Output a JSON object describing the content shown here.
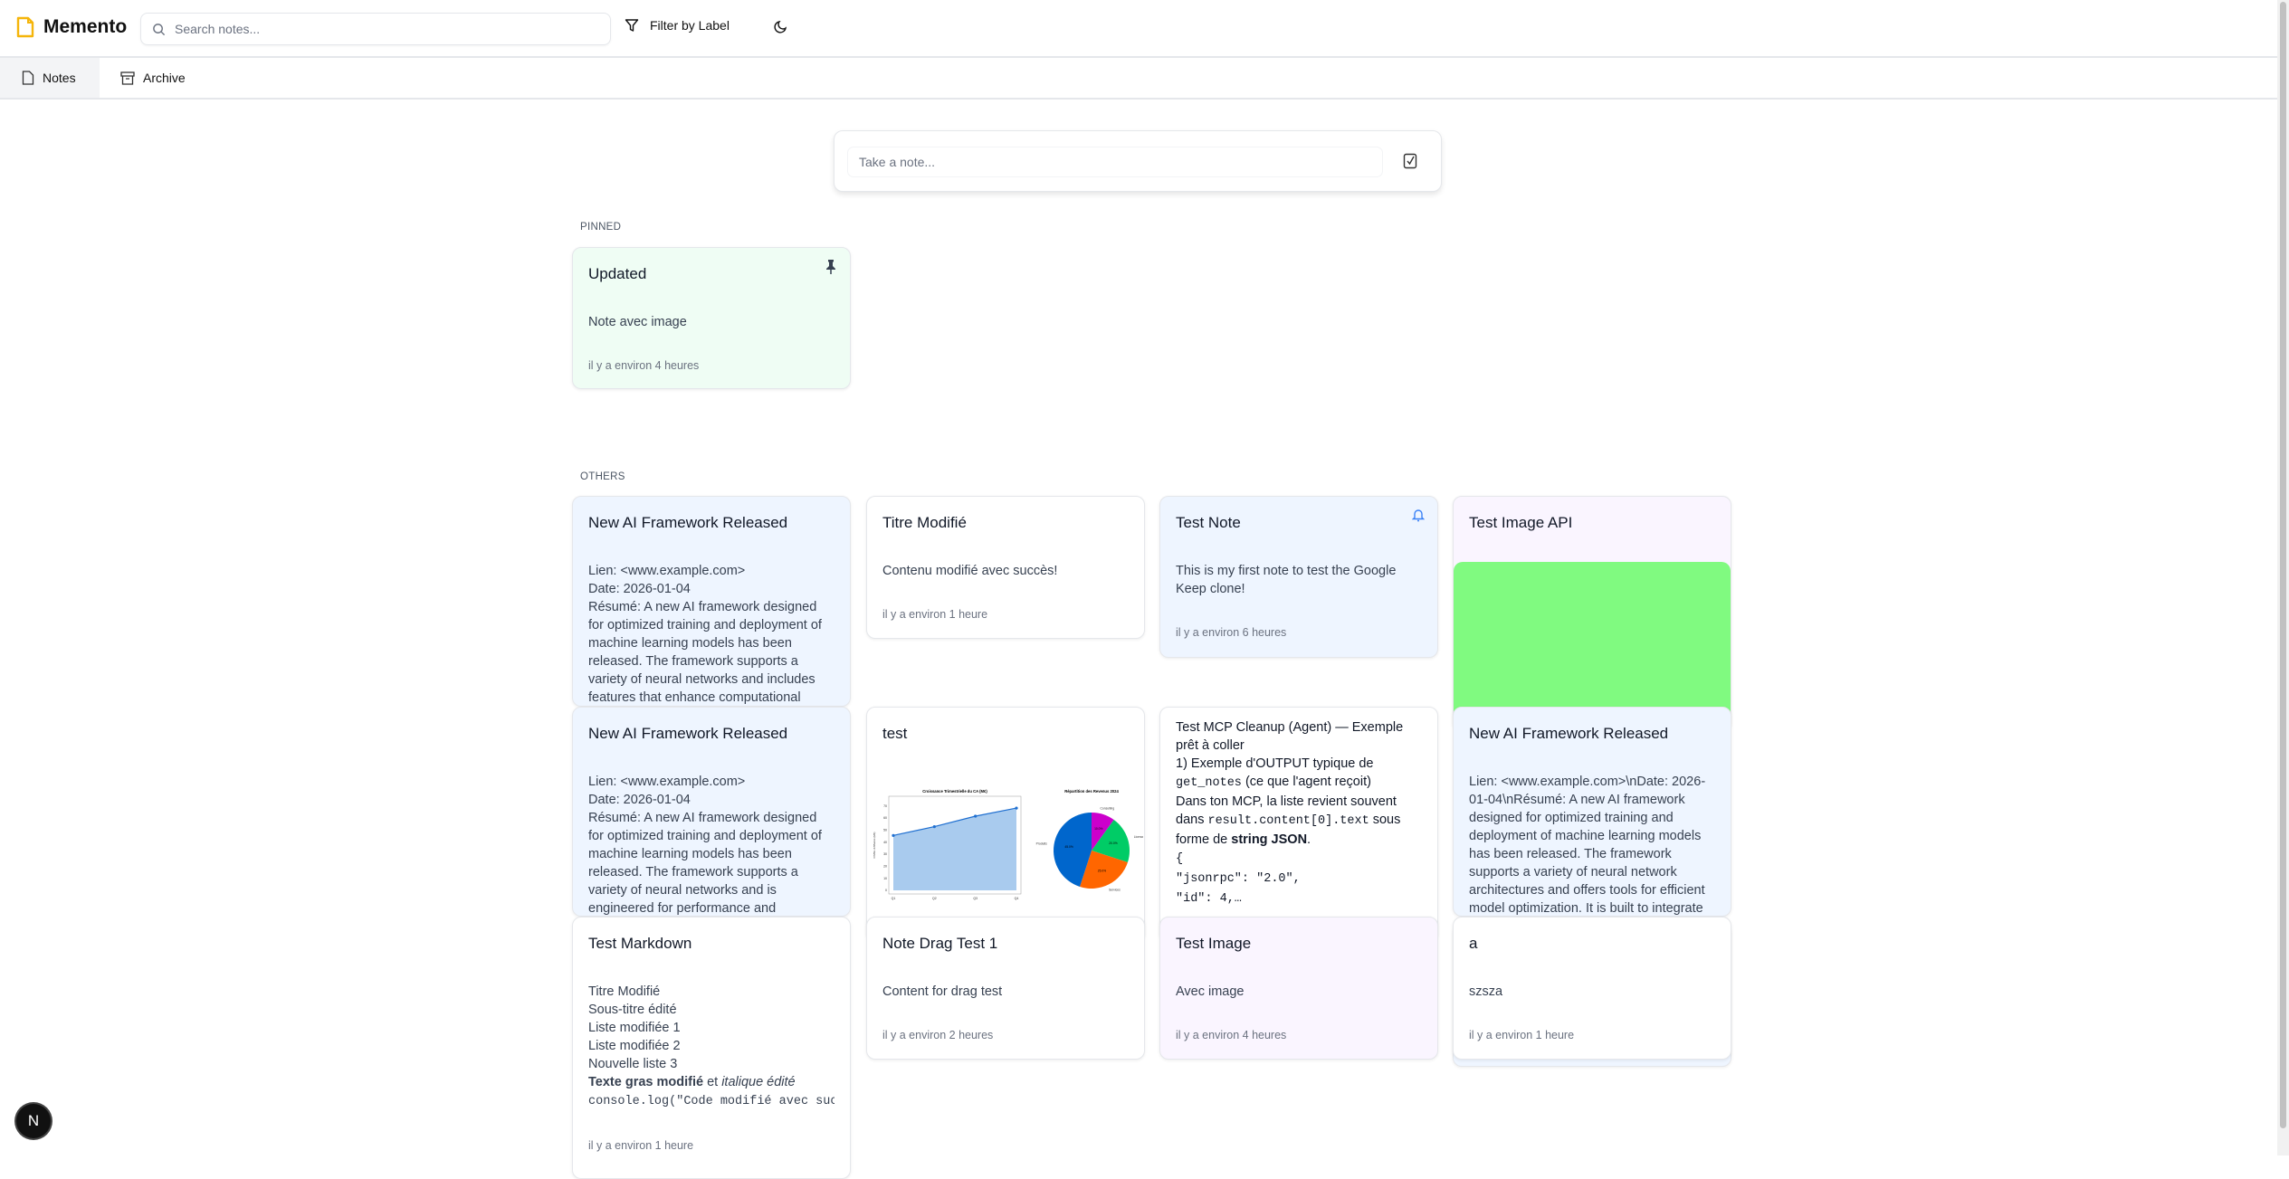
{
  "header": {
    "app_name": "Memento",
    "search_placeholder": "Search notes...",
    "filter_label": "Filter by Label"
  },
  "tabs": [
    {
      "label": "Notes",
      "active": true
    },
    {
      "label": "Archive",
      "active": false
    }
  ],
  "composer": {
    "placeholder": "Take a note..."
  },
  "sections": {
    "pinned": "PINNED",
    "others": "OTHERS"
  },
  "colors": {
    "blue": "#eef5ff",
    "green": "#effdf4",
    "purple": "#faf5ff",
    "white": "#ffffff",
    "image_green": "#80fa80",
    "logo": "#f5b50a"
  },
  "notes": [
    {
      "title": "Updated",
      "color": "green",
      "icon": "pin-icon",
      "body": [
        "Note avec image"
      ],
      "ts": "il y a environ 4 heures"
    },
    {
      "title": "New AI Framework Released",
      "color": "blue",
      "body": [
        "Lien: <www.example.com>",
        "Date: 2026-01-04",
        "Résumé: A new AI framework designed",
        "for optimized training and deployment of",
        "machine learning models has been",
        "released. The framework supports a",
        "variety of neural networks and includes",
        "features that enhance computational"
      ]
    },
    {
      "title": "Titre Modifié",
      "color": "white",
      "body": [
        "Contenu modifié avec succès!"
      ],
      "ts": "il y a environ 1 heure"
    },
    {
      "title": "Test Note",
      "color": "blue",
      "icon": "bell-icon",
      "body": [
        "This is my first note to test the Google",
        "Keep clone!"
      ],
      "ts": "il y a environ 6 heures"
    },
    {
      "title": "Test Image API",
      "color": "purple",
      "image": "green"
    },
    {
      "title": "New AI Framework Released",
      "color": "blue",
      "body": [
        "Lien: <www.example.com>",
        "Date: 2026-01-04",
        "Résumé: A new AI framework designed",
        "for optimized training and deployment of",
        "machine learning models has been",
        "released. The framework supports a",
        "variety of neural networks and is",
        "engineered for performance and"
      ]
    },
    {
      "title": "test",
      "color": "white",
      "chart": {
        "line_title": "Croissance Trimestrielle du CA (M€)",
        "line_ylabel": "Chiffre d'Affaires (M€)",
        "quarters": [
          "Q1",
          "Q2",
          "Q3",
          "Q4"
        ],
        "values": [
          45.5,
          52.8,
          61.5,
          68.2
        ],
        "yticks": [
          "0",
          "10",
          "20",
          "30",
          "40",
          "50",
          "60",
          "70"
        ],
        "pie_title": "Répartition des Revenus 2024",
        "slices": [
          {
            "label": "Produits",
            "pct": "45.0%",
            "value": 45,
            "color": "#0066cc"
          },
          {
            "label": "Services",
            "pct": "25.0%",
            "value": 25,
            "color": "#ff6600"
          },
          {
            "label": "Licences",
            "pct": "20.0%",
            "value": 20,
            "color": "#00cc66"
          },
          {
            "label": "Consulting",
            "pct": "10.0%",
            "value": 10,
            "color": "#cc00cc"
          }
        ]
      }
    },
    {
      "title": "",
      "color": "white",
      "body": [
        "Test MCP Cleanup (Agent) — Exemple",
        "prêt à coller",
        "1) Exemple d'OUTPUT typique de",
        [
          {
            "t": "get_notes",
            "s": "code"
          },
          {
            "t": " (ce que l'agent reçoit)"
          }
        ],
        "Dans ton MCP, la liste revient souvent",
        [
          {
            "t": "dans "
          },
          {
            "t": "result.content[0].text",
            "s": "code"
          },
          {
            "t": " sous"
          }
        ],
        [
          {
            "t": "forme de "
          },
          {
            "t": "string JSON",
            "s": "b"
          },
          {
            "t": "."
          }
        ],
        [
          {
            "t": "{",
            "s": "code"
          }
        ],
        [
          {
            "t": "  \"jsonrpc\": \"2.0\",",
            "s": "code"
          }
        ],
        [
          {
            "t": "  \"id\": 4,…",
            "s": "code"
          }
        ]
      ]
    },
    {
      "title": "New AI Framework Released",
      "color": "blue",
      "body": [
        "Lien: <www.example.com>\\nDate: 2026-",
        "01-04\\nRésumé: A new AI framework",
        "designed for optimized training and",
        "deployment of machine learning models",
        "has been released. The framework",
        "supports a variety of neural network",
        "architectures and offers tools for efficient",
        "model optimization. It is built to integrate"
      ]
    },
    {
      "title": "Test Markdown",
      "color": "white",
      "body": [
        "Titre Modifié",
        "Sous-titre édité",
        "Liste modifiée 1",
        "Liste modifiée 2",
        "Nouvelle liste 3",
        [
          {
            "t": "Texte gras modifié",
            "s": "b"
          },
          {
            "t": " et "
          },
          {
            "t": "italique édité",
            "s": "i"
          }
        ],
        [
          {
            "t": "console.log(\"Code modifié avec succès!\");",
            "s": "code"
          }
        ]
      ],
      "ts": "il y a environ 1 heure"
    },
    {
      "title": "Note Drag Test 1",
      "color": "white",
      "body": [
        "Content for drag test"
      ],
      "ts": "il y a environ 2 heures"
    },
    {
      "title": "Test Image",
      "color": "purple",
      "body": [
        "Avec image"
      ],
      "ts": "il y a environ 4 heures"
    },
    {
      "title": "a",
      "color": "white",
      "body": [
        "szsza"
      ],
      "ts": "il y a environ 1 heure"
    }
  ],
  "dev_badge": "N"
}
